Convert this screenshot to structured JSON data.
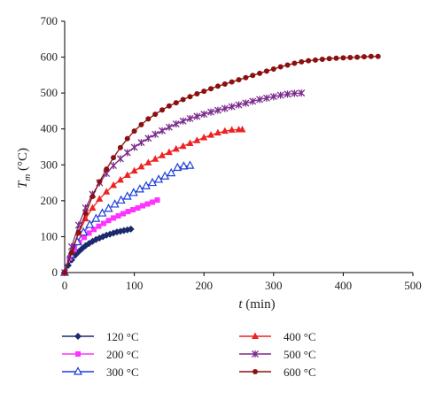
{
  "chart_data": {
    "type": "line",
    "xlabel_var": "t",
    "xlabel_unit": " (min)",
    "ylabel_var": "T",
    "ylabel_sub": "m",
    "ylabel_unit": " (°C)",
    "xlim": [
      0,
      500
    ],
    "ylim": [
      0,
      700
    ],
    "xticks": [
      "0",
      "100",
      "200",
      "300",
      "400",
      "500"
    ],
    "yticks": [
      "0",
      "100",
      "200",
      "300",
      "400",
      "500",
      "600",
      "700"
    ],
    "grid": false,
    "legend_position": "bottom",
    "series": [
      {
        "name": "120 °C",
        "color": "#1a2a6c",
        "marker": "diamond",
        "x": [
          0,
          5,
          10,
          15,
          20,
          25,
          30,
          35,
          40,
          45,
          50,
          55,
          60,
          65,
          70,
          75,
          80,
          85,
          90,
          95
        ],
        "y": [
          0,
          20,
          35,
          48,
          58,
          67,
          75,
          81,
          87,
          92,
          96,
          100,
          104,
          107,
          110,
          113,
          115,
          117,
          119,
          121
        ]
      },
      {
        "name": "200 °C",
        "color": "#ff33ff",
        "marker": "square",
        "x": [
          0,
          7,
          14,
          21,
          28,
          35,
          42,
          49,
          56,
          63,
          70,
          77,
          84,
          91,
          98,
          105,
          112,
          119,
          126,
          133
        ],
        "y": [
          0,
          40,
          65,
          84,
          98,
          110,
          120,
          129,
          137,
          145,
          152,
          158,
          164,
          170,
          175,
          180,
          186,
          191,
          196,
          202
        ]
      },
      {
        "name": "300 °C",
        "color": "#1f3ddb",
        "marker": "triangle-open",
        "x": [
          0,
          9,
          18,
          27,
          36,
          45,
          54,
          63,
          72,
          81,
          90,
          99,
          108,
          117,
          126,
          135,
          144,
          153,
          162,
          171,
          180
        ],
        "y": [
          0,
          50,
          85,
          112,
          133,
          150,
          165,
          178,
          190,
          201,
          212,
          222,
          232,
          241,
          250,
          259,
          268,
          277,
          292,
          296,
          298
        ]
      },
      {
        "name": "400 °C",
        "color": "#ee2222",
        "marker": "triangle",
        "x": [
          0,
          10,
          20,
          30,
          40,
          50,
          60,
          70,
          80,
          90,
          100,
          110,
          120,
          130,
          140,
          150,
          160,
          170,
          180,
          190,
          200,
          210,
          220,
          230,
          240,
          250,
          255
        ],
        "y": [
          0,
          60,
          110,
          150,
          180,
          205,
          225,
          243,
          258,
          271,
          283,
          295,
          306,
          316,
          326,
          335,
          344,
          352,
          360,
          368,
          376,
          383,
          389,
          394,
          397,
          398,
          398
        ]
      },
      {
        "name": "500 °C",
        "color": "#7a2a8c",
        "marker": "star",
        "x": [
          0,
          10,
          20,
          30,
          40,
          50,
          60,
          70,
          80,
          90,
          100,
          110,
          120,
          130,
          140,
          150,
          160,
          170,
          180,
          190,
          200,
          210,
          220,
          230,
          240,
          250,
          260,
          270,
          280,
          290,
          300,
          310,
          320,
          330,
          340
        ],
        "y": [
          0,
          72,
          132,
          180,
          218,
          250,
          276,
          298,
          317,
          334,
          349,
          362,
          374,
          385,
          395,
          405,
          414,
          422,
          429,
          435,
          441,
          447,
          452,
          457,
          462,
          467,
          472,
          477,
          482,
          486,
          490,
          494,
          497,
          499,
          500
        ]
      },
      {
        "name": "600 °C",
        "color": "#8b1010",
        "marker": "circle",
        "x": [
          0,
          10,
          20,
          30,
          40,
          50,
          60,
          70,
          80,
          90,
          100,
          110,
          120,
          130,
          140,
          150,
          160,
          170,
          180,
          190,
          200,
          210,
          220,
          230,
          240,
          250,
          260,
          270,
          280,
          290,
          300,
          310,
          320,
          330,
          340,
          350,
          360,
          370,
          380,
          390,
          400,
          410,
          420,
          430,
          440,
          450
        ],
        "y": [
          0,
          55,
          112,
          165,
          212,
          253,
          288,
          320,
          348,
          373,
          394,
          412,
          428,
          441,
          453,
          464,
          473,
          482,
          490,
          498,
          505,
          512,
          519,
          525,
          531,
          537,
          543,
          549,
          555,
          561,
          567,
          573,
          578,
          583,
          587,
          590,
          592,
          594,
          596,
          597,
          598,
          599,
          600,
          601,
          602,
          602
        ]
      }
    ]
  }
}
